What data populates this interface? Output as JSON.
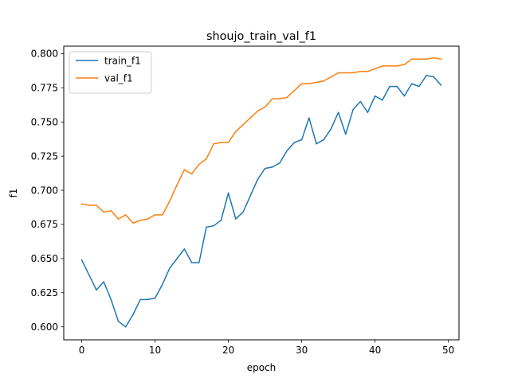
{
  "chart_data": {
    "type": "line",
    "title": "shoujo_train_val_f1",
    "xlabel": "epoch",
    "ylabel": "f1",
    "xlim": [
      -2.45,
      51.45
    ],
    "ylim": [
      0.5905,
      0.8055
    ],
    "xticks": [
      0,
      10,
      20,
      30,
      40,
      50
    ],
    "xtick_labels": [
      "0",
      "10",
      "20",
      "30",
      "40",
      "50"
    ],
    "yticks": [
      0.6,
      0.625,
      0.65,
      0.675,
      0.7,
      0.725,
      0.75,
      0.775,
      0.8
    ],
    "ytick_labels": [
      "0.600",
      "0.625",
      "0.650",
      "0.675",
      "0.700",
      "0.725",
      "0.750",
      "0.775",
      "0.800"
    ],
    "grid": false,
    "legend_position": "upper-left",
    "x": [
      0,
      1,
      2,
      3,
      4,
      5,
      6,
      7,
      8,
      9,
      10,
      11,
      12,
      13,
      14,
      15,
      16,
      17,
      18,
      19,
      20,
      21,
      22,
      23,
      24,
      25,
      26,
      27,
      28,
      29,
      30,
      31,
      32,
      33,
      34,
      35,
      36,
      37,
      38,
      39,
      40,
      41,
      42,
      43,
      44,
      45,
      46,
      47,
      48,
      49
    ],
    "series": [
      {
        "name": "train_f1",
        "color": "#1f77b4",
        "values": [
          0.649,
          0.638,
          0.627,
          0.633,
          0.62,
          0.604,
          0.6,
          0.609,
          0.62,
          0.62,
          0.621,
          0.631,
          0.643,
          0.65,
          0.657,
          0.647,
          0.647,
          0.673,
          0.674,
          0.678,
          0.698,
          0.679,
          0.684,
          0.696,
          0.708,
          0.716,
          0.717,
          0.72,
          0.729,
          0.735,
          0.737,
          0.753,
          0.734,
          0.737,
          0.745,
          0.757,
          0.741,
          0.759,
          0.765,
          0.757,
          0.769,
          0.766,
          0.776,
          0.776,
          0.769,
          0.778,
          0.776,
          0.784,
          0.783,
          0.777
        ]
      },
      {
        "name": "val_f1",
        "color": "#ff7f0e",
        "values": [
          0.69,
          0.689,
          0.689,
          0.684,
          0.685,
          0.679,
          0.682,
          0.676,
          0.678,
          0.679,
          0.682,
          0.682,
          0.692,
          0.704,
          0.715,
          0.712,
          0.719,
          0.723,
          0.734,
          0.735,
          0.735,
          0.743,
          0.748,
          0.753,
          0.758,
          0.761,
          0.767,
          0.767,
          0.768,
          0.773,
          0.778,
          0.778,
          0.779,
          0.78,
          0.783,
          0.786,
          0.786,
          0.786,
          0.787,
          0.787,
          0.789,
          0.791,
          0.791,
          0.791,
          0.792,
          0.796,
          0.796,
          0.796,
          0.797,
          0.796
        ]
      }
    ]
  }
}
